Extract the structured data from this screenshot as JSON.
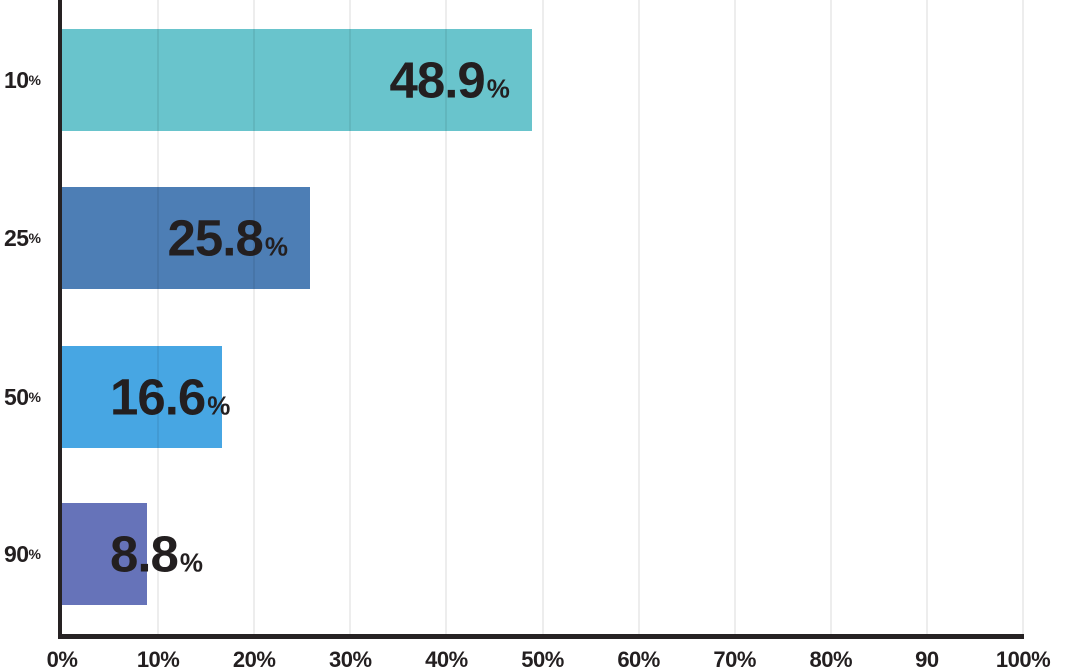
{
  "chart_data": {
    "type": "bar",
    "orientation": "horizontal",
    "categories": [
      "10%",
      "25%",
      "50%",
      "90%"
    ],
    "values": [
      48.9,
      25.8,
      16.6,
      8.8
    ],
    "xlim": [
      0,
      100
    ],
    "grid": true,
    "legend": false,
    "bars": [
      {
        "category_number": "10",
        "category_suffix": "%",
        "value": 48.9,
        "value_display": "48.9",
        "value_suffix": "%",
        "color": "#69c4cc"
      },
      {
        "category_number": "25",
        "category_suffix": "%",
        "value": 25.8,
        "value_display": "25.8",
        "value_suffix": "%",
        "color": "#4d7eb5"
      },
      {
        "category_number": "50",
        "category_suffix": "%",
        "value": 16.6,
        "value_display": "16.6",
        "value_suffix": "%",
        "color": "#47a6e3"
      },
      {
        "category_number": "90",
        "category_suffix": "%",
        "value": 8.8,
        "value_display": "8.8",
        "value_suffix": "%",
        "color": "#6673b9"
      }
    ],
    "x_ticks": [
      {
        "label": "0%",
        "value": 0
      },
      {
        "label": "10%",
        "value": 10
      },
      {
        "label": "20%",
        "value": 20
      },
      {
        "label": "30%",
        "value": 30
      },
      {
        "label": "40%",
        "value": 40
      },
      {
        "label": "50%",
        "value": 50
      },
      {
        "label": "60%",
        "value": 60
      },
      {
        "label": "70%",
        "value": 70
      },
      {
        "label": "80%",
        "value": 80
      },
      {
        "label": "90",
        "value": 90
      },
      {
        "label": "100%",
        "value": 100
      }
    ]
  },
  "colors": {
    "background": "#ffffff",
    "text": "#231f20",
    "axis": "#262223",
    "gridline_rgba": "rgba(0,0,0,0.07)",
    "bar_teal": "#69c4cc",
    "bar_steel_blue": "#4d7eb5",
    "bar_bright_blue": "#47a6e3",
    "bar_indigo": "#6673b9"
  }
}
